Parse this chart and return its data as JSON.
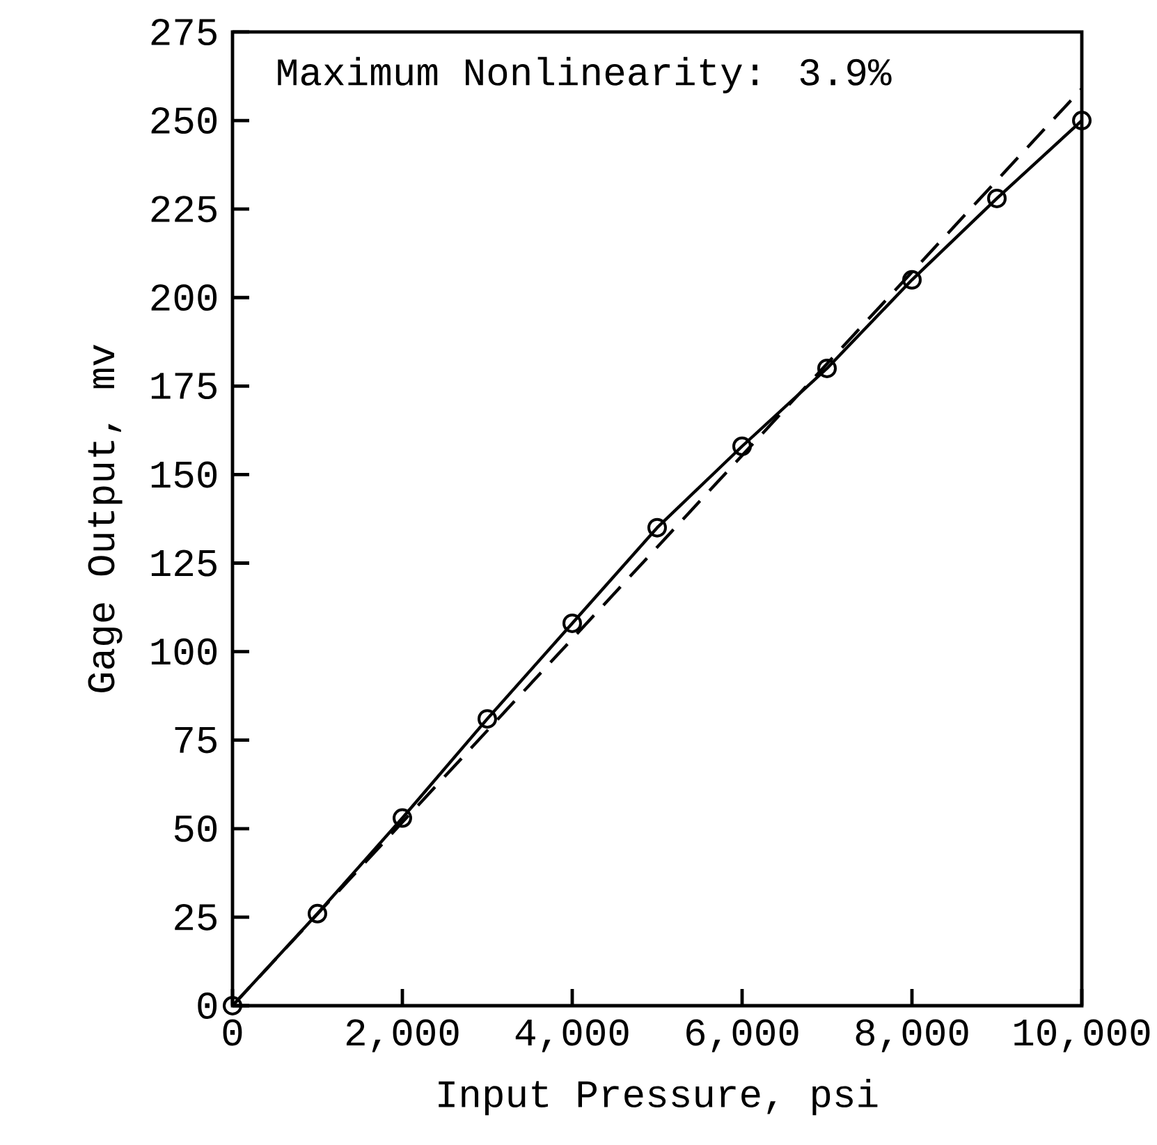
{
  "chart_data": {
    "type": "line",
    "xlabel": "Input Pressure, psi",
    "ylabel": "Gage Output, mv",
    "annotations": [
      "Maximum Nonlinearity:  3.9%"
    ],
    "xlim": [
      0,
      10000
    ],
    "ylim": [
      0,
      275
    ],
    "xticks": [
      0,
      {
        "value": 2000,
        "label": "2,000"
      },
      {
        "value": 4000,
        "label": "4,000"
      },
      {
        "value": 6000,
        "label": "6,000"
      },
      {
        "value": 8000,
        "label": "8,000"
      },
      {
        "value": 10000,
        "label": "10,000"
      }
    ],
    "yticks": [
      0,
      25,
      50,
      75,
      100,
      125,
      150,
      175,
      200,
      225,
      250,
      275
    ],
    "series": [
      {
        "color": "#000000",
        "marker": "circle",
        "line_style": "solid",
        "x": [
          0,
          1000,
          2000,
          3000,
          4000,
          5000,
          6000,
          7000,
          8000,
          9000,
          10000
        ],
        "values": [
          0,
          26,
          53,
          81,
          108,
          135,
          158,
          180,
          205,
          228,
          250
        ]
      },
      {
        "type": "line",
        "color": "#000000",
        "marker": "none",
        "line_style": "dashed",
        "x": [
          0,
          10000
        ],
        "values": [
          0,
          259
        ]
      }
    ]
  }
}
